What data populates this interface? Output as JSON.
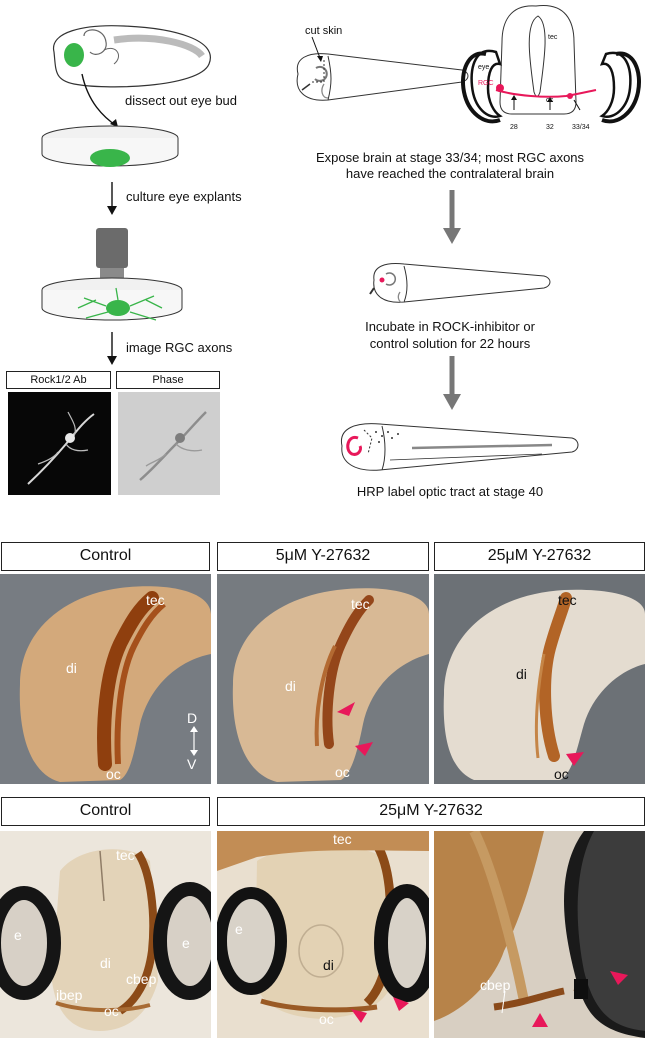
{
  "schematic": {
    "dissect_label": "dissect out eye bud",
    "culture_label": "culture eye explants",
    "image_label": "image RGC axons",
    "rock_label": "Rock1/2 Ab",
    "phase_label": "Phase",
    "cut_skin_label": "cut skin",
    "tec_label": "tec",
    "eye_label": "eye",
    "rgc_label": "RGC",
    "oc_label": "oc",
    "stage_28": "28",
    "stage_32": "32",
    "stage_3334": "33/34",
    "expose_text_1": "Expose brain at stage 33/34; most RGC axons",
    "expose_text_2": "have reached the contralateral brain",
    "incubate_text_1": "Incubate in ROCK-inhibitor or",
    "incubate_text_2": "control solution for 22 hours",
    "hrp_text": "HRP label optic tract at stage 40"
  },
  "row1": {
    "panel_a_title": "Control",
    "panel_b_title": "5μM Y-27632",
    "panel_c_title": "25μM Y-27632",
    "tec": "tec",
    "di": "di",
    "oc": "oc",
    "dorsal": "D",
    "ventral": "V"
  },
  "row2": {
    "panel_a_title": "Control",
    "panel_b_title": "25μM Y-27632",
    "tec": "tec",
    "di": "di",
    "e": "e",
    "oc": "oc",
    "ibep": "ibep",
    "cbep": "cbep"
  },
  "colors": {
    "arrowhead": "#e8185a",
    "tissue": "#c9a073",
    "tract": "#9a4a14",
    "eye_ring": "#1a1a1a",
    "rgc_green": "#39b54a",
    "rgc_red": "#e8185a"
  }
}
